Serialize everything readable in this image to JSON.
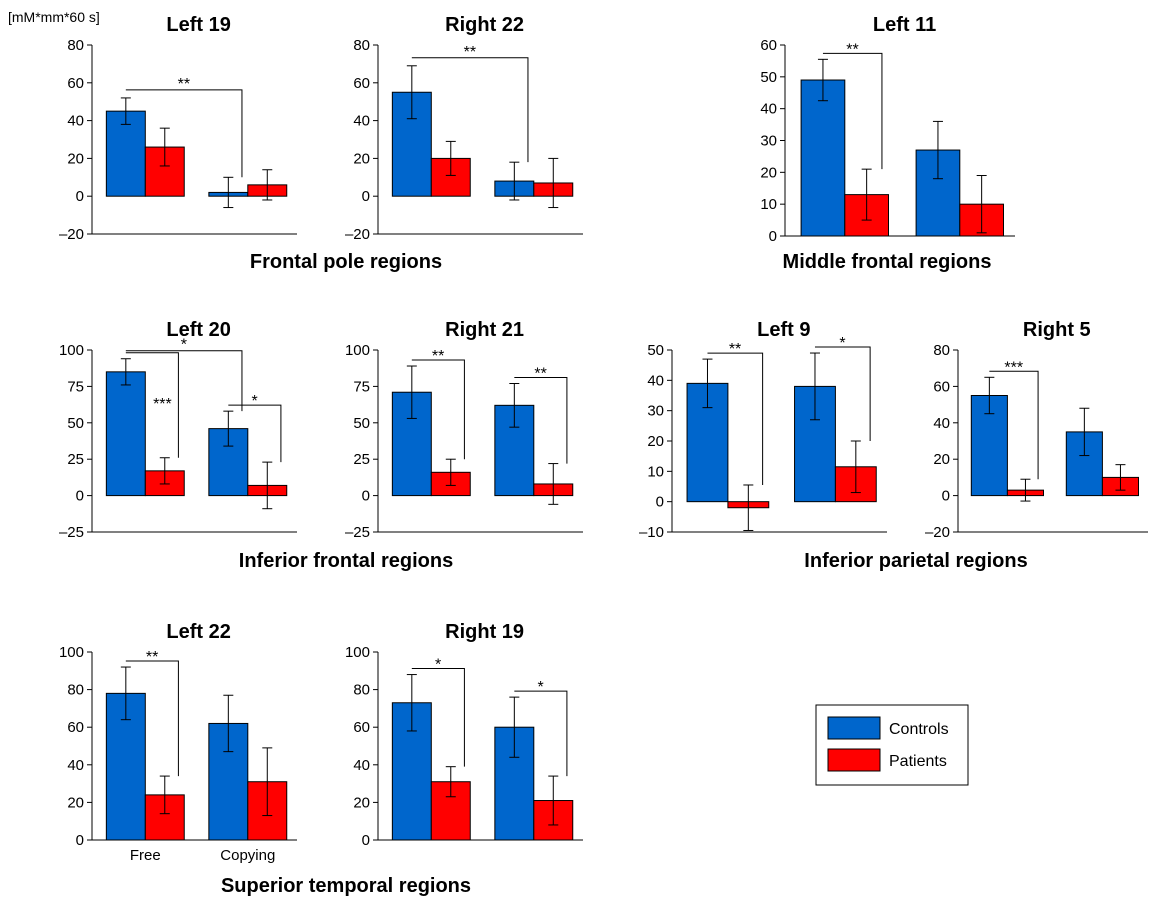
{
  "unit_label": "[mM*mm*60 s]",
  "group_titles": [
    "Frontal pole regions",
    "Middle frontal regions",
    "Inferior frontal regions",
    "Inferior parietal regions",
    "Superior temporal regions"
  ],
  "legend": {
    "controls": "Controls",
    "patients": "Patients"
  },
  "colors": {
    "controls": "#0066cc",
    "patients": "#ff0000"
  },
  "chart_data": [
    {
      "type": "bar",
      "title": "Left 19",
      "categories": [
        "Free",
        "Copying"
      ],
      "series": [
        {
          "name": "Controls",
          "values": [
            45,
            2
          ],
          "errors": [
            7,
            8
          ]
        },
        {
          "name": "Patients",
          "values": [
            26,
            6
          ],
          "errors": [
            10,
            8
          ]
        }
      ],
      "ylim": [
        -20,
        80
      ],
      "yticks": [
        -20,
        0,
        20,
        40,
        60,
        80
      ],
      "ytick_labels": [
        "–20",
        "0",
        "20",
        "40",
        "60",
        "80"
      ],
      "significance": [
        {
          "label": "**",
          "from": [
            0,
            0
          ],
          "to": [
            1,
            0
          ]
        }
      ]
    },
    {
      "type": "bar",
      "title": "Right 22",
      "categories": [
        "Free",
        "Copying"
      ],
      "series": [
        {
          "name": "Controls",
          "values": [
            55,
            8
          ],
          "errors": [
            14,
            10
          ]
        },
        {
          "name": "Patients",
          "values": [
            20,
            7
          ],
          "errors": [
            9,
            13
          ]
        }
      ],
      "ylim": [
        -20,
        80
      ],
      "yticks": [
        -20,
        0,
        20,
        40,
        60,
        80
      ],
      "ytick_labels": [
        "–20",
        "0",
        "20",
        "40",
        "60",
        "80"
      ],
      "significance": [
        {
          "label": "**",
          "from": [
            0,
            0
          ],
          "to": [
            1,
            0
          ]
        }
      ]
    },
    {
      "type": "bar",
      "title": "Left 11",
      "categories": [
        "Free",
        "Copying"
      ],
      "series": [
        {
          "name": "Controls",
          "values": [
            49,
            27
          ],
          "errors": [
            6.5,
            9
          ]
        },
        {
          "name": "Patients",
          "values": [
            13,
            10
          ],
          "errors": [
            8,
            9
          ]
        }
      ],
      "ylim": [
        0,
        60
      ],
      "yticks": [
        0,
        10,
        20,
        30,
        40,
        50,
        60
      ],
      "ytick_labels": [
        "0",
        "10",
        "20",
        "30",
        "40",
        "50",
        "60"
      ],
      "significance": [
        {
          "label": "**",
          "from": [
            0,
            0
          ],
          "to": [
            0,
            1
          ]
        }
      ]
    },
    {
      "type": "bar",
      "title": "Left 20",
      "categories": [
        "Free",
        "Copying"
      ],
      "series": [
        {
          "name": "Controls",
          "values": [
            85,
            46
          ],
          "errors": [
            9,
            12
          ]
        },
        {
          "name": "Patients",
          "values": [
            17,
            7
          ],
          "errors": [
            9,
            16
          ]
        }
      ],
      "ylim": [
        -25,
        100
      ],
      "yticks": [
        -25,
        0,
        25,
        50,
        75,
        100
      ],
      "ytick_labels": [
        "–25",
        "0",
        "25",
        "50",
        "75",
        "100"
      ],
      "significance": [
        {
          "label": "*",
          "from": [
            0,
            0
          ],
          "to": [
            1,
            0
          ]
        },
        {
          "label": "***",
          "from": [
            0,
            0
          ],
          "to": [
            0,
            1
          ]
        },
        {
          "label": "*",
          "from": [
            1,
            0
          ],
          "to": [
            1,
            1
          ]
        }
      ]
    },
    {
      "type": "bar",
      "title": "Right 21",
      "categories": [
        "Free",
        "Copying"
      ],
      "series": [
        {
          "name": "Controls",
          "values": [
            71,
            62
          ],
          "errors": [
            18,
            15
          ]
        },
        {
          "name": "Patients",
          "values": [
            16,
            8
          ],
          "errors": [
            9,
            14
          ]
        }
      ],
      "ylim": [
        -25,
        100
      ],
      "yticks": [
        -25,
        0,
        25,
        50,
        75,
        100
      ],
      "ytick_labels": [
        "–25",
        "0",
        "25",
        "50",
        "75",
        "100"
      ],
      "significance": [
        {
          "label": "**",
          "from": [
            0,
            0
          ],
          "to": [
            0,
            1
          ]
        },
        {
          "label": "**",
          "from": [
            1,
            0
          ],
          "to": [
            1,
            1
          ]
        }
      ]
    },
    {
      "type": "bar",
      "title": "Left 9",
      "categories": [
        "Free",
        "Copying"
      ],
      "series": [
        {
          "name": "Controls",
          "values": [
            39,
            38
          ],
          "errors": [
            8,
            11
          ]
        },
        {
          "name": "Patients",
          "values": [
            -2,
            11.5
          ],
          "errors": [
            7.5,
            8.5
          ]
        }
      ],
      "ylim": [
        -10,
        50
      ],
      "yticks": [
        -10,
        0,
        10,
        20,
        30,
        40,
        50
      ],
      "ytick_labels": [
        "–10",
        "0",
        "10",
        "20",
        "30",
        "40",
        "50"
      ],
      "significance": [
        {
          "label": "**",
          "from": [
            0,
            0
          ],
          "to": [
            0,
            1
          ]
        },
        {
          "label": "*",
          "from": [
            1,
            0
          ],
          "to": [
            1,
            1
          ]
        }
      ]
    },
    {
      "type": "bar",
      "title": "Right 5",
      "categories": [
        "Free",
        "Copying"
      ],
      "series": [
        {
          "name": "Controls",
          "values": [
            55,
            35
          ],
          "errors": [
            10,
            13
          ]
        },
        {
          "name": "Patients",
          "values": [
            3,
            10
          ],
          "errors": [
            6,
            7
          ]
        }
      ],
      "ylim": [
        -20,
        80
      ],
      "yticks": [
        -20,
        0,
        20,
        40,
        60,
        80
      ],
      "ytick_labels": [
        "–20",
        "0",
        "20",
        "40",
        "60",
        "80"
      ],
      "significance": [
        {
          "label": "***",
          "from": [
            0,
            0
          ],
          "to": [
            0,
            1
          ]
        }
      ]
    },
    {
      "type": "bar",
      "title": "Left 22",
      "categories": [
        "Free",
        "Copying"
      ],
      "show_xlabels": true,
      "series": [
        {
          "name": "Controls",
          "values": [
            78,
            62
          ],
          "errors": [
            14,
            15
          ]
        },
        {
          "name": "Patients",
          "values": [
            24,
            31
          ],
          "errors": [
            10,
            18
          ]
        }
      ],
      "ylim": [
        0,
        100
      ],
      "yticks": [
        0,
        20,
        40,
        60,
        80,
        100
      ],
      "ytick_labels": [
        "0",
        "20",
        "40",
        "60",
        "80",
        "100"
      ],
      "significance": [
        {
          "label": "**",
          "from": [
            0,
            0
          ],
          "to": [
            0,
            1
          ]
        }
      ]
    },
    {
      "type": "bar",
      "title": "Right 19",
      "categories": [
        "Free",
        "Copying"
      ],
      "series": [
        {
          "name": "Controls",
          "values": [
            73,
            60
          ],
          "errors": [
            15,
            16
          ]
        },
        {
          "name": "Patients",
          "values": [
            31,
            21
          ],
          "errors": [
            8,
            13
          ]
        }
      ],
      "ylim": [
        0,
        100
      ],
      "yticks": [
        0,
        20,
        40,
        60,
        80,
        100
      ],
      "ytick_labels": [
        "0",
        "20",
        "40",
        "60",
        "80",
        "100"
      ],
      "significance": [
        {
          "label": "*",
          "from": [
            0,
            0
          ],
          "to": [
            0,
            1
          ]
        },
        {
          "label": "*",
          "from": [
            1,
            0
          ],
          "to": [
            1,
            1
          ]
        }
      ]
    }
  ]
}
